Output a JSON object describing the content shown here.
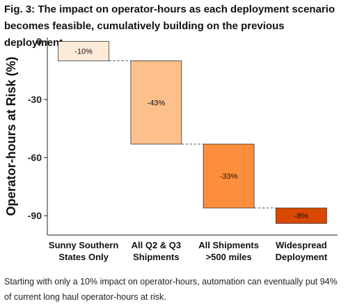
{
  "figure": {
    "title": "Fig. 3: The impact on operator-hours as each deployment scenario becomes feasible, cumulatively building on the previous deployment.",
    "caption": "Starting with only a 10% impact on operator-hours, automation can eventually put 94% of current long haul operator-hours at risk."
  },
  "chart_data": {
    "type": "bar",
    "subtype": "waterfall",
    "categories": [
      [
        "Sunny Southern",
        "States Only"
      ],
      [
        "All Q2 & Q3",
        "Shipments"
      ],
      [
        "All Shipments",
        ">500 miles"
      ],
      [
        "Widespread",
        "Deployment"
      ]
    ],
    "values": [
      -10,
      -43,
      -33,
      -8
    ],
    "data_labels": [
      "-10%",
      "-43%",
      "-33%",
      "-8%"
    ],
    "colors": [
      "#fdebd8",
      "#fdc08c",
      "#fd8f3c",
      "#d94701"
    ],
    "ylabel": "Operator-hours at Risk (%)",
    "xlabel": "",
    "ylim": [
      -100,
      2
    ],
    "yticks": [
      0,
      -30,
      -60,
      -90
    ],
    "grid": false,
    "legend": "none"
  }
}
